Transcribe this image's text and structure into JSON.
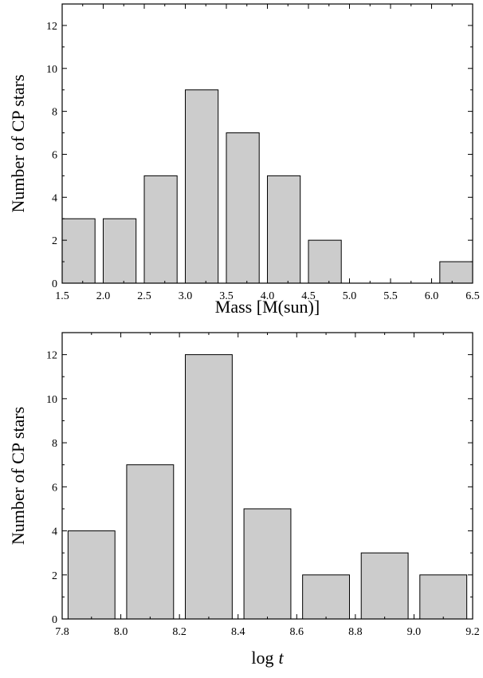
{
  "chart_data": [
    {
      "type": "bar",
      "xlabel": "Mass [M(sun)]",
      "ylabel": "Number of CP stars",
      "xlim": [
        1.5,
        6.5
      ],
      "ylim": [
        0,
        13
      ],
      "xticks": [
        "1.5",
        "2.0",
        "2.5",
        "3.0",
        "3.5",
        "4.0",
        "4.5",
        "5.0",
        "5.5",
        "6.0",
        "6.5"
      ],
      "yticks": [
        "0",
        "2",
        "4",
        "6",
        "8",
        "10",
        "12"
      ],
      "bars": [
        {
          "x0": 1.5,
          "x1": 1.9,
          "value": 3
        },
        {
          "x0": 2.0,
          "x1": 2.4,
          "value": 3
        },
        {
          "x0": 2.5,
          "x1": 2.9,
          "value": 5
        },
        {
          "x0": 3.0,
          "x1": 3.4,
          "value": 9
        },
        {
          "x0": 3.5,
          "x1": 3.9,
          "value": 7
        },
        {
          "x0": 4.0,
          "x1": 4.4,
          "value": 5
        },
        {
          "x0": 4.5,
          "x1": 4.9,
          "value": 2
        },
        {
          "x0": 6.1,
          "x1": 6.5,
          "value": 1
        }
      ]
    },
    {
      "type": "bar",
      "xlabel": "log",
      "xlabel_italic": "t",
      "ylabel": "Number of CP stars",
      "xlim": [
        7.8,
        9.2
      ],
      "ylim": [
        0,
        13
      ],
      "xticks": [
        "7.8",
        "8.0",
        "8.2",
        "8.4",
        "8.6",
        "8.8",
        "9.0",
        "9.2"
      ],
      "yticks": [
        "0",
        "2",
        "4",
        "6",
        "8",
        "10",
        "12"
      ],
      "bars": [
        {
          "x0": 7.82,
          "x1": 7.98,
          "value": 4
        },
        {
          "x0": 8.02,
          "x1": 8.18,
          "value": 7
        },
        {
          "x0": 8.22,
          "x1": 8.38,
          "value": 12
        },
        {
          "x0": 8.42,
          "x1": 8.58,
          "value": 5
        },
        {
          "x0": 8.62,
          "x1": 8.78,
          "value": 2
        },
        {
          "x0": 8.82,
          "x1": 8.98,
          "value": 3
        },
        {
          "x0": 9.02,
          "x1": 9.18,
          "value": 2
        }
      ]
    }
  ]
}
